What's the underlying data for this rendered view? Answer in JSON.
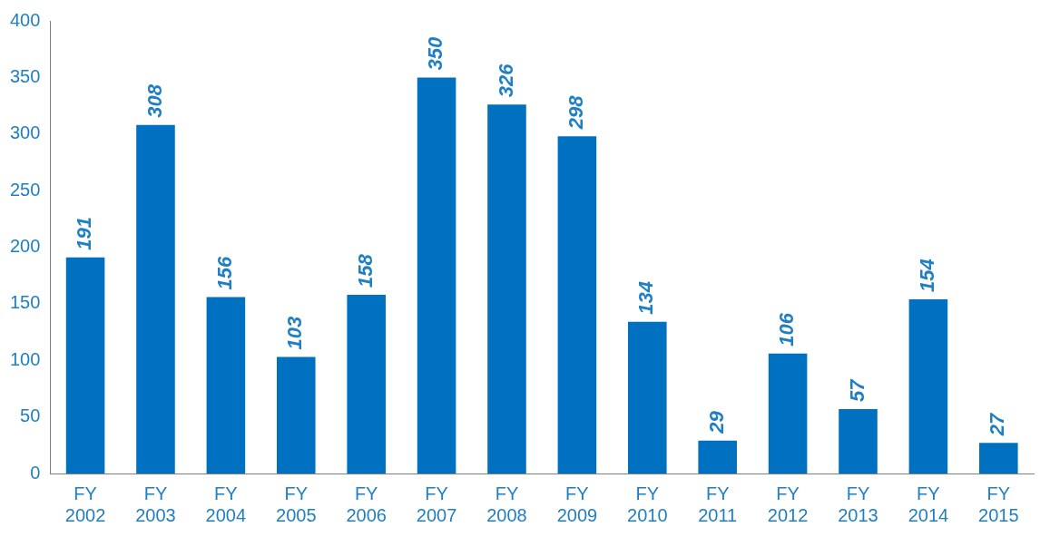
{
  "chart_data": {
    "type": "bar",
    "categories": [
      "FY 2002",
      "FY 2003",
      "FY 2004",
      "FY 2005",
      "FY 2006",
      "FY 2007",
      "FY 2008",
      "FY 2009",
      "FY 2010",
      "FY 2011",
      "FY 2012",
      "FY 2013",
      "FY 2014",
      "FY 2015"
    ],
    "values": [
      191,
      308,
      156,
      103,
      158,
      350,
      326,
      298,
      134,
      29,
      106,
      57,
      154,
      27
    ],
    "color": "#0070c0",
    "ylim": [
      0,
      400
    ],
    "yticks": [
      0,
      50,
      100,
      150,
      200,
      250,
      300,
      350,
      400
    ],
    "grid": false,
    "legend": false,
    "data_labels": true
  }
}
